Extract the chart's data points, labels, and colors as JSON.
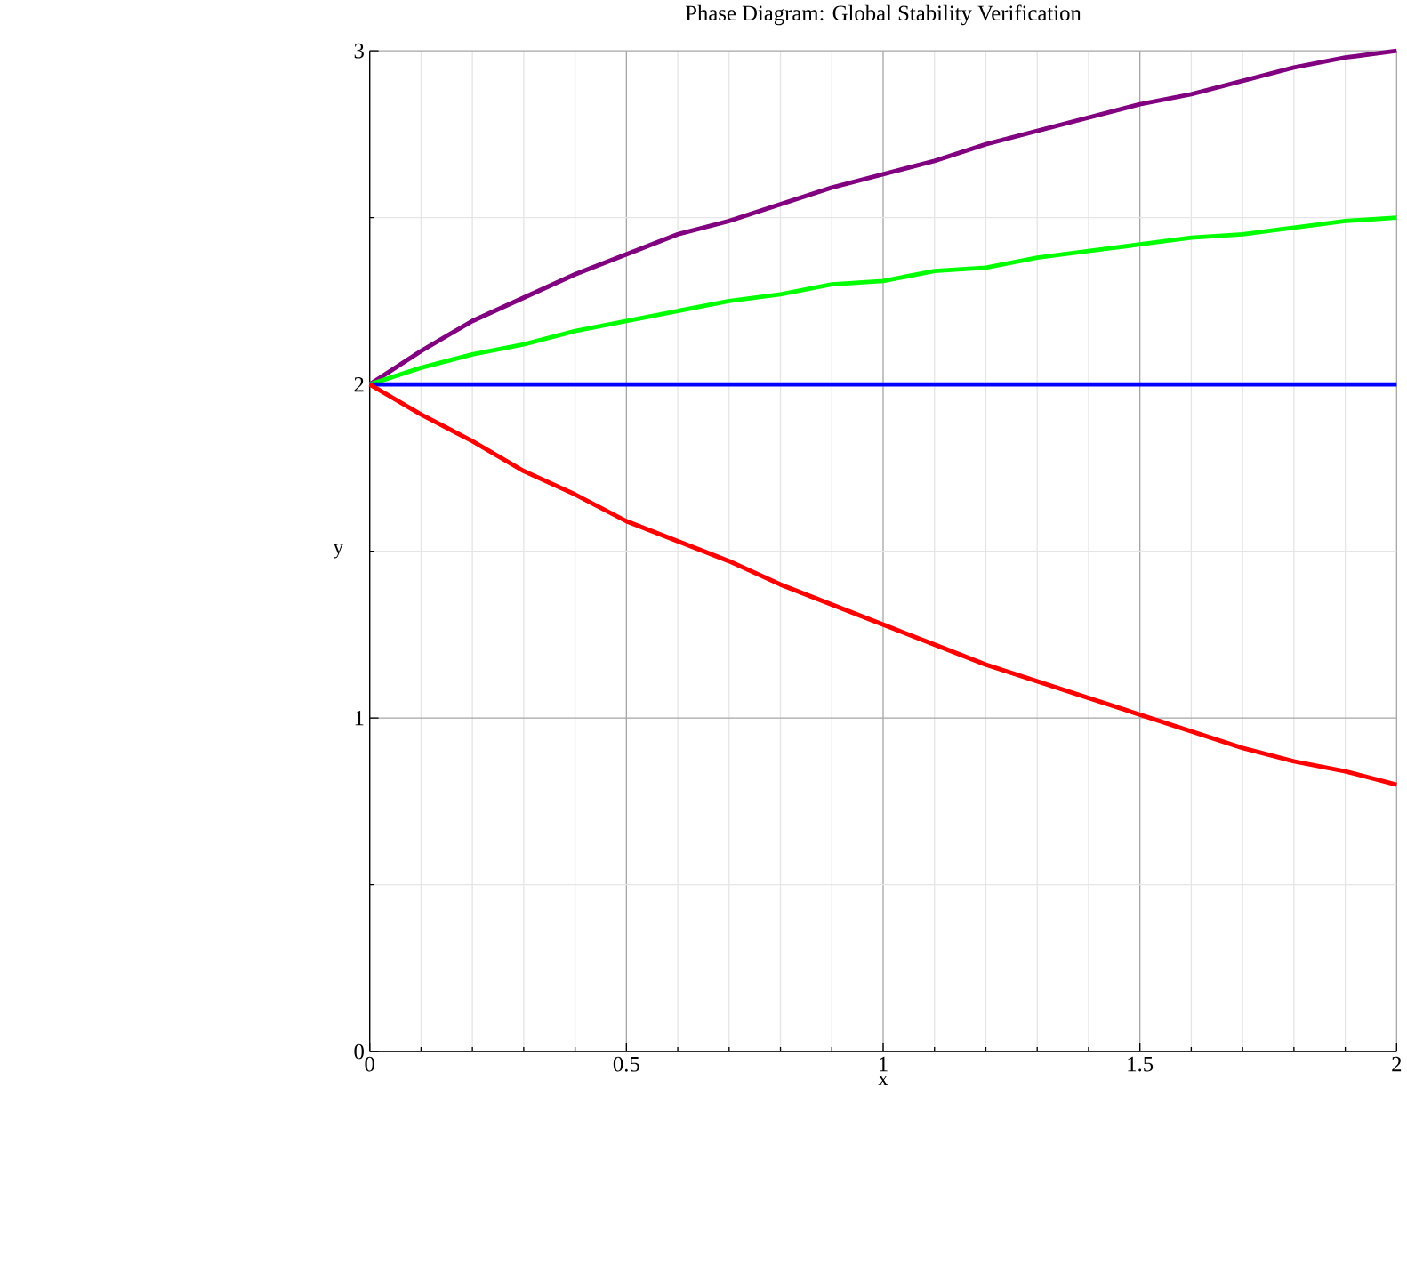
{
  "chart_data": {
    "type": "line",
    "title": "Phase Diagram: Global Stability Verification",
    "xlabel": "x",
    "ylabel": "y",
    "x": [
      0,
      0.1,
      0.2,
      0.3,
      0.4,
      0.5,
      0.6,
      0.7,
      0.8,
      0.9,
      1.0,
      1.1,
      1.2,
      1.3,
      1.4,
      1.5,
      1.6,
      1.7,
      1.8,
      1.9,
      2.0
    ],
    "series": [
      {
        "color": "#800080",
        "values": [
          2.0,
          2.1,
          2.19,
          2.26,
          2.33,
          2.39,
          2.45,
          2.49,
          2.54,
          2.59,
          2.63,
          2.67,
          2.72,
          2.76,
          2.8,
          2.84,
          2.87,
          2.91,
          2.95,
          2.98,
          3.0
        ]
      },
      {
        "color": "#00ff00",
        "values": [
          2.0,
          2.05,
          2.09,
          2.12,
          2.16,
          2.19,
          2.22,
          2.25,
          2.27,
          2.3,
          2.31,
          2.34,
          2.35,
          2.38,
          2.4,
          2.42,
          2.44,
          2.45,
          2.47,
          2.49,
          2.5
        ]
      },
      {
        "color": "#0000ff",
        "values": [
          2.0,
          2.0,
          2.0,
          2.0,
          2.0,
          2.0,
          2.0,
          2.0,
          2.0,
          2.0,
          2.0,
          2.0,
          2.0,
          2.0,
          2.0,
          2.0,
          2.0,
          2.0,
          2.0,
          2.0,
          2.0
        ]
      },
      {
        "color": "#ff0000",
        "values": [
          2.0,
          1.91,
          1.83,
          1.74,
          1.67,
          1.59,
          1.53,
          1.47,
          1.4,
          1.34,
          1.28,
          1.22,
          1.16,
          1.11,
          1.06,
          1.01,
          0.96,
          0.91,
          0.87,
          0.84,
          0.8
        ]
      }
    ],
    "xlim": [
      0,
      2
    ],
    "ylim": [
      0,
      3
    ],
    "xticks": [
      0,
      {
        "value": 0.1,
        "label": null
      },
      {
        "value": 0.2,
        "label": null
      },
      {
        "value": 0.3,
        "label": null
      },
      {
        "value": 0.4,
        "label": null
      },
      0.5,
      {
        "value": 0.6,
        "label": null
      },
      {
        "value": 0.7,
        "label": null
      },
      {
        "value": 0.8,
        "label": null
      },
      {
        "value": 0.9,
        "label": null
      },
      1,
      {
        "value": 1.1,
        "label": null
      },
      {
        "value": 1.2,
        "label": null
      },
      {
        "value": 1.3,
        "label": null
      },
      {
        "value": 1.4,
        "label": null
      },
      1.5,
      {
        "value": 1.6,
        "label": null
      },
      {
        "value": 1.7,
        "label": null
      },
      {
        "value": 1.8,
        "label": null
      },
      {
        "value": 1.9,
        "label": null
      },
      2
    ],
    "yticks": [
      0,
      {
        "value": 0.5,
        "label": null
      },
      1,
      {
        "value": 1.5,
        "label": null
      },
      2,
      {
        "value": 2.5,
        "label": null
      },
      3
    ],
    "grid": true,
    "line_style": "solid"
  }
}
